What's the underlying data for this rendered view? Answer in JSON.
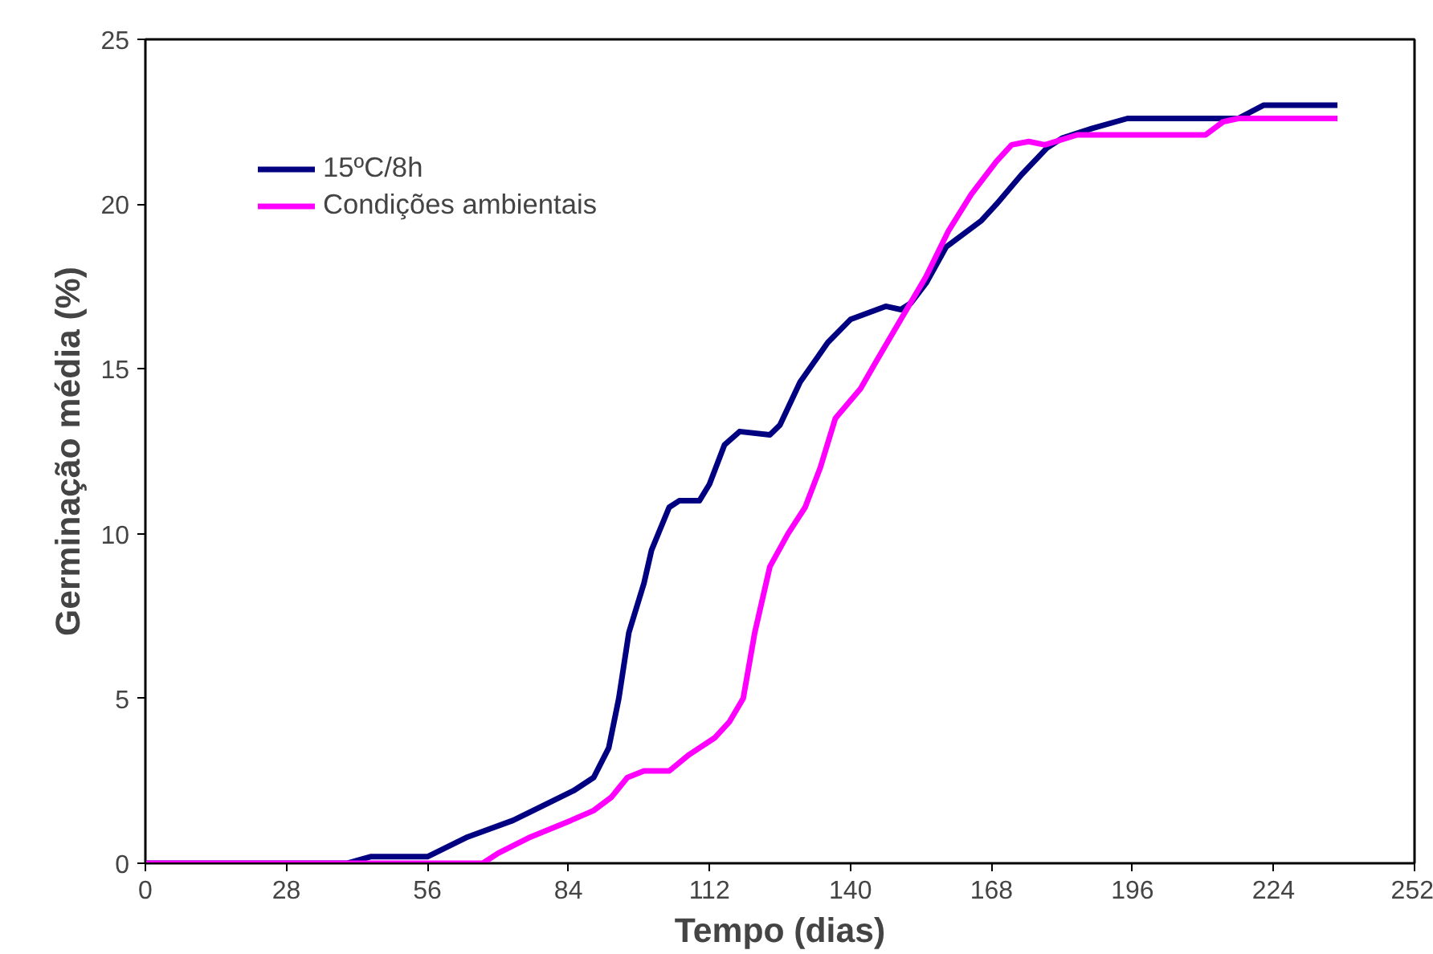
{
  "chart_data": {
    "type": "line",
    "xlabel": "Tempo (dias)",
    "ylabel": "Germinação média (%)",
    "xlim": [
      0,
      252
    ],
    "xticks": [
      0,
      28,
      56,
      84,
      112,
      140,
      168,
      196,
      224,
      252
    ],
    "ylim": [
      0,
      25
    ],
    "yticks": [
      0,
      5,
      10,
      15,
      20,
      25
    ],
    "grid": false,
    "legend": "top left",
    "line_style": "solid",
    "series": [
      {
        "name": "15ºC/8h",
        "color": "#000080",
        "x": [
          0,
          40,
          44.7,
          56,
          64,
          73,
          85,
          89,
          92,
          94,
          96,
          99,
          100.5,
          104,
          106,
          110,
          112,
          115,
          118,
          124,
          126,
          130,
          135.5,
          140,
          147,
          150,
          152,
          155,
          159,
          166,
          169,
          174,
          179,
          182,
          188,
          195,
          210.5,
          217,
          222,
          236.7
        ],
        "values": [
          0,
          0,
          0.2,
          0.2,
          0.8,
          1.3,
          2.2,
          2.6,
          3.5,
          5,
          7,
          8.5,
          9.5,
          10.8,
          11,
          11,
          11.5,
          12.7,
          13.1,
          13,
          13.3,
          14.6,
          15.8,
          16.5,
          16.9,
          16.8,
          17,
          17.6,
          18.7,
          19.5,
          20,
          20.9,
          21.7,
          22,
          22.3,
          22.6,
          22.6,
          22.6,
          23,
          23
        ]
      },
      {
        "name": "Condições ambientais",
        "color": "#ff00ff",
        "x": [
          0,
          67,
          70,
          76.5,
          84.5,
          89,
          92.5,
          95.7,
          99,
          104,
          108,
          113,
          116,
          118.7,
          121,
          124,
          127.6,
          131,
          134,
          137,
          142,
          145,
          150,
          155,
          159.5,
          164,
          169,
          172,
          175.4,
          178.6,
          185,
          207,
          210.5,
          214,
          217,
          236.7
        ],
        "values": [
          0,
          0,
          0.3,
          0.8,
          1.3,
          1.6,
          2,
          2.6,
          2.8,
          2.8,
          3.3,
          3.8,
          4.3,
          5,
          7,
          9,
          10,
          10.8,
          12,
          13.5,
          14.4,
          15.2,
          16.5,
          17.8,
          19.2,
          20.3,
          21.3,
          21.8,
          21.9,
          21.8,
          22.1,
          22.1,
          22.1,
          22.5,
          22.6,
          22.6
        ]
      }
    ]
  }
}
